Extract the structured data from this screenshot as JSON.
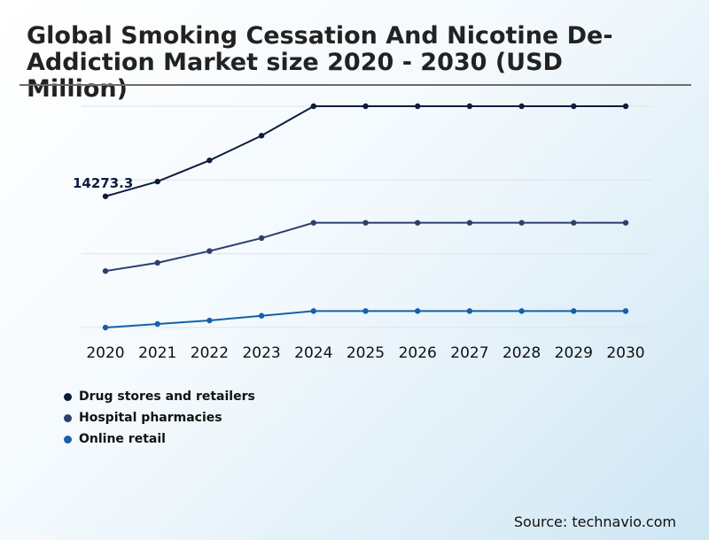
{
  "title": "Global Smoking Cessation And Nicotine De-Addiction Market size 2020 - 2030 (USD Million)",
  "source": "Source: technavio.com",
  "chart_data": {
    "type": "line",
    "title": "Global Smoking Cessation And Nicotine De-Addiction Market size 2020 - 2030 (USD Million)",
    "categories": [
      "2020",
      "2021",
      "2022",
      "2023",
      "2024",
      "2025",
      "2026",
      "2027",
      "2028",
      "2029",
      "2030"
    ],
    "series": [
      {
        "name": "Drug stores and retailers",
        "color": "#0d1b3e",
        "values": [
          14273.3,
          14900,
          15800,
          16850,
          18100,
          18100,
          18100,
          18100,
          18100,
          18100,
          18100
        ]
      },
      {
        "name": "Hospital pharmacies",
        "color": "#2e3f6e",
        "values": [
          11100,
          11450,
          11950,
          12500,
          13150,
          13150,
          13150,
          13150,
          13150,
          13150,
          13150
        ]
      },
      {
        "name": "Online retail",
        "color": "#1560a8",
        "values": [
          8700,
          8850,
          9000,
          9200,
          9400,
          9400,
          9400,
          9400,
          9400,
          9400,
          9400
        ]
      }
    ],
    "data_labels": [
      {
        "series": 0,
        "index": 0,
        "text": "14273.3"
      }
    ],
    "ylim": [
      8700,
      18100
    ],
    "xlabel": "",
    "ylabel": "",
    "grid": true,
    "legend": "bottom-left"
  }
}
